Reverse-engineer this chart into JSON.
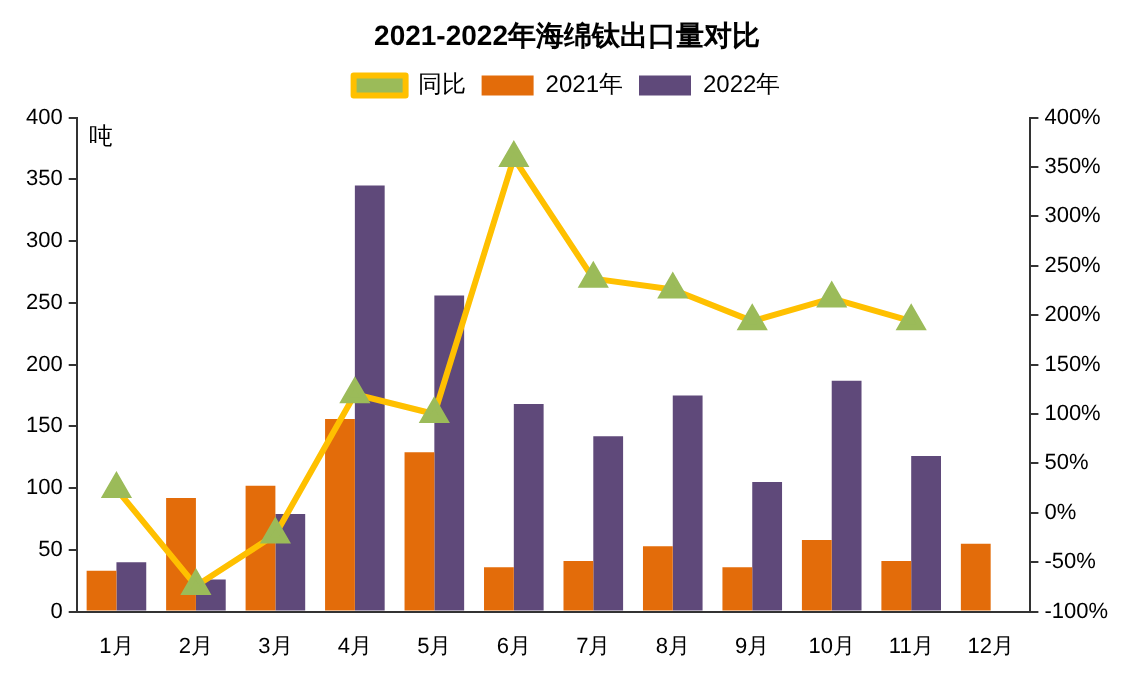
{
  "chart_data": {
    "type": "bar",
    "title": "2021-2022年海绵钛出口量对比",
    "ylabel": "吨",
    "categories": [
      "1月",
      "2月",
      "3月",
      "4月",
      "5月",
      "6月",
      "7月",
      "8月",
      "9月",
      "10月",
      "11月",
      "12月"
    ],
    "series": [
      {
        "name": "2021年",
        "color": "#e36c0a",
        "values": [
          33,
          92,
          102,
          156,
          129,
          36,
          41,
          53,
          36,
          58,
          41,
          55
        ]
      },
      {
        "name": "2022年",
        "color": "#5f497a",
        "values": [
          40,
          26,
          79,
          345,
          256,
          168,
          142,
          175,
          105,
          187,
          126,
          null
        ]
      },
      {
        "name": "同比",
        "type": "line",
        "axis": "y2",
        "color": "#ffc000",
        "colors": [
          "#9bbb59",
          "#9bbb59",
          "#9bbb59",
          "#9bbb59",
          "#9bbb59",
          "#9bbb59",
          "#9bbb59",
          "#9bbb59",
          "#9bbb59",
          "#9bbb59",
          "#9bbb59",
          "#9bbb59"
        ],
        "values": [
          24,
          -74,
          -22,
          120,
          100,
          359,
          237,
          226,
          194,
          217,
          194,
          null
        ]
      }
    ],
    "ylim": [
      0,
      400
    ],
    "yticks": [
      0,
      50,
      100,
      150,
      200,
      250,
      300,
      350,
      400
    ],
    "y2lim": [
      -100,
      400
    ],
    "y2ticks": [
      {
        "value": -100,
        "label": "-100%"
      },
      {
        "value": -50,
        "label": "-50%"
      },
      {
        "value": 0,
        "label": "0%"
      },
      {
        "value": 50,
        "label": "50%"
      },
      {
        "value": 100,
        "label": "100%"
      },
      {
        "value": 150,
        "label": "150%"
      },
      {
        "value": 200,
        "label": "200%"
      },
      {
        "value": 250,
        "label": "250%"
      },
      {
        "value": 300,
        "label": "300%"
      },
      {
        "value": 350,
        "label": "350%"
      },
      {
        "value": 400,
        "label": "400%"
      }
    ],
    "grid": false,
    "legend": "top",
    "marker": "triangle"
  }
}
